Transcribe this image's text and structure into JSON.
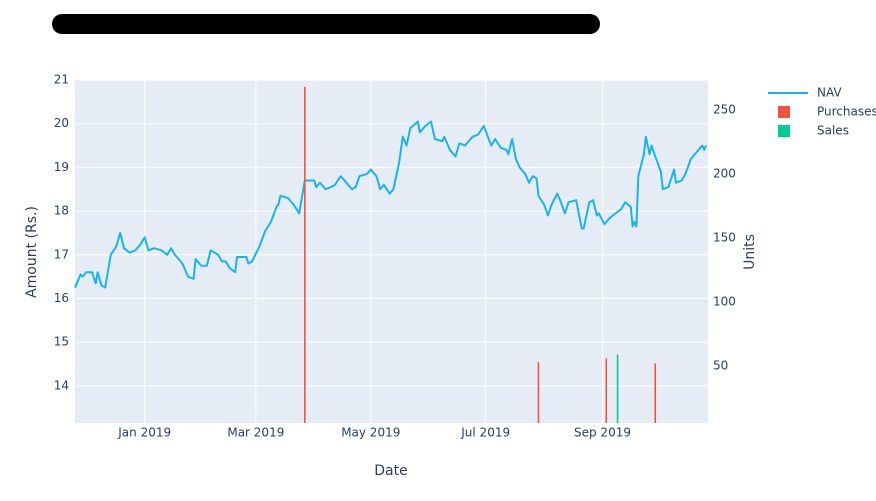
{
  "chart_data": {
    "type": "line",
    "x_label": "Date",
    "y_label": "Amount (Rs.)",
    "y2_label": "Units",
    "xlim": [
      "2018-11-25",
      "2019-10-27"
    ],
    "xticks": [
      {
        "value": "2019-01-01",
        "label": "Jan 2019"
      },
      {
        "value": "2019-03-01",
        "label": "Mar 2019"
      },
      {
        "value": "2019-05-01",
        "label": "May 2019"
      },
      {
        "value": "2019-07-01",
        "label": "Jul 2019"
      },
      {
        "value": "2019-09-01",
        "label": "Sep 2019"
      }
    ],
    "ylim": [
      13.15,
      21
    ],
    "yticks": [
      14,
      15,
      16,
      17,
      18,
      19,
      20,
      21
    ],
    "y2lim": [
      5.5,
      273.4
    ],
    "y2ticks": [
      50,
      100,
      150,
      200,
      250
    ],
    "grid": true,
    "legend": "right",
    "series": [
      {
        "name": "NAV",
        "type": "line",
        "color": "#19b5ea",
        "x": [
          "2018-11-25",
          "2018-11-28",
          "2018-11-29",
          "2018-12-01",
          "2018-12-04",
          "2018-12-06",
          "2018-12-07",
          "2018-12-09",
          "2018-12-11",
          "2018-12-14",
          "2018-12-17",
          "2018-12-19",
          "2018-12-21",
          "2018-12-24",
          "2018-12-27",
          "2018-12-30",
          "2019-01-01",
          "2019-01-03",
          "2019-01-06",
          "2019-01-10",
          "2019-01-13",
          "2019-01-15",
          "2019-01-17",
          "2019-01-21",
          "2019-01-24",
          "2019-01-27",
          "2019-01-28",
          "2019-01-31",
          "2019-02-03",
          "2019-02-05",
          "2019-02-09",
          "2019-02-11",
          "2019-02-13",
          "2019-02-15",
          "2019-02-18",
          "2019-02-19",
          "2019-02-24",
          "2019-02-25",
          "2019-02-27",
          "2019-03-03",
          "2019-03-06",
          "2019-03-09",
          "2019-03-12",
          "2019-03-13",
          "2019-03-14",
          "2019-03-18",
          "2019-03-21",
          "2019-03-24",
          "2019-03-25",
          "2019-03-27",
          "2019-04-01",
          "2019-04-02",
          "2019-04-04",
          "2019-04-07",
          "2019-04-10",
          "2019-04-12",
          "2019-04-15",
          "2019-04-18",
          "2019-04-21",
          "2019-04-23",
          "2019-04-25",
          "2019-04-29",
          "2019-05-01",
          "2019-05-04",
          "2019-05-06",
          "2019-05-08",
          "2019-05-11",
          "2019-05-13",
          "2019-05-16",
          "2019-05-18",
          "2019-05-20",
          "2019-05-22",
          "2019-05-26",
          "2019-05-27",
          "2019-05-30",
          "2019-06-02",
          "2019-06-04",
          "2019-06-08",
          "2019-06-09",
          "2019-06-12",
          "2019-06-15",
          "2019-06-17",
          "2019-06-20",
          "2019-06-24",
          "2019-06-27",
          "2019-06-30",
          "2019-07-03",
          "2019-07-04",
          "2019-07-06",
          "2019-07-09",
          "2019-07-12",
          "2019-07-13",
          "2019-07-15",
          "2019-07-17",
          "2019-07-19",
          "2019-07-22",
          "2019-07-24",
          "2019-07-26",
          "2019-07-28",
          "2019-07-29",
          "2019-08-01",
          "2019-08-03",
          "2019-08-05",
          "2019-08-08",
          "2019-08-10",
          "2019-08-12",
          "2019-08-14",
          "2019-08-18",
          "2019-08-21",
          "2019-08-22",
          "2019-08-25",
          "2019-08-27",
          "2019-08-29",
          "2019-08-30",
          "2019-09-02",
          "2019-09-05",
          "2019-09-08",
          "2019-09-11",
          "2019-09-13",
          "2019-09-16",
          "2019-09-17",
          "2019-09-18",
          "2019-09-19",
          "2019-09-20",
          "2019-09-23",
          "2019-09-24",
          "2019-09-26",
          "2019-09-27",
          "2019-09-29",
          "2019-10-02",
          "2019-10-03",
          "2019-10-06",
          "2019-10-09",
          "2019-10-10",
          "2019-10-13",
          "2019-10-15",
          "2019-10-18",
          "2019-10-21",
          "2019-10-24",
          "2019-10-25",
          "2019-10-26"
        ],
        "values": [
          16.25,
          16.55,
          16.5,
          16.6,
          16.6,
          16.35,
          16.6,
          16.3,
          16.25,
          17.0,
          17.2,
          17.5,
          17.15,
          17.05,
          17.1,
          17.25,
          17.4,
          17.1,
          17.15,
          17.1,
          17.0,
          17.15,
          17.0,
          16.8,
          16.5,
          16.45,
          16.9,
          16.75,
          16.75,
          17.1,
          17.0,
          16.85,
          16.85,
          16.7,
          16.6,
          16.95,
          16.95,
          16.8,
          16.85,
          17.2,
          17.55,
          17.75,
          18.1,
          18.15,
          18.35,
          18.3,
          18.15,
          17.95,
          18.2,
          18.7,
          18.7,
          18.55,
          18.65,
          18.5,
          18.55,
          18.6,
          18.8,
          18.65,
          18.5,
          18.55,
          18.8,
          18.85,
          18.95,
          18.8,
          18.5,
          18.6,
          18.4,
          18.5,
          19.1,
          19.7,
          19.5,
          19.9,
          20.05,
          19.8,
          19.95,
          20.05,
          19.65,
          19.6,
          19.7,
          19.4,
          19.25,
          19.55,
          19.5,
          19.7,
          19.75,
          19.95,
          19.6,
          19.5,
          19.65,
          19.45,
          19.4,
          19.3,
          19.65,
          19.2,
          19.0,
          18.85,
          18.65,
          18.8,
          18.75,
          18.35,
          18.15,
          17.9,
          18.15,
          18.4,
          18.2,
          17.95,
          18.2,
          18.25,
          17.6,
          17.6,
          18.2,
          18.25,
          17.9,
          17.95,
          17.7,
          17.85,
          17.95,
          18.05,
          18.2,
          18.1,
          17.65,
          17.75,
          17.65,
          18.8,
          19.3,
          19.7,
          19.3,
          19.5,
          19.25,
          18.9,
          18.5,
          18.55,
          18.95,
          18.65,
          18.7,
          18.85,
          19.2,
          19.35,
          19.5,
          19.4,
          19.5
        ]
      },
      {
        "name": "Purchases",
        "type": "bar",
        "axis": "y2",
        "color": "#ef553b",
        "x": [
          "2019-03-27",
          "2019-07-29",
          "2019-09-03",
          "2019-09-29"
        ],
        "values": [
          268,
          53,
          56,
          52
        ]
      },
      {
        "name": "Sales",
        "type": "bar",
        "axis": "y2",
        "color": "#00cc96",
        "x": [
          "2019-09-09"
        ],
        "values": [
          59
        ]
      }
    ]
  }
}
